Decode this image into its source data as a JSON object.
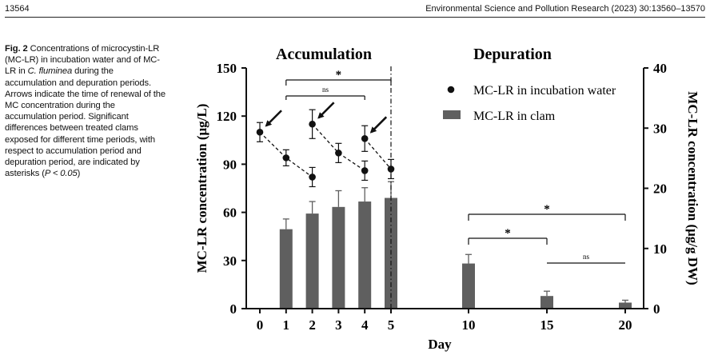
{
  "page_header": {
    "page_number": "13564",
    "journal_ref": "Environmental Science and Pollution Research (2023) 30:13560–13570"
  },
  "caption": {
    "label": "Fig. 2",
    "text_1": " Concentrations of microcystin-LR (MC-LR) in incubation water and of MC-LR in ",
    "species": "C. fluminea",
    "text_2": " during the accumulation and depuration periods. Arrows indicate the time of renewal of the MC concentration during the accumulation period. Significant differences between treated clams exposed for different time periods, with respect to accumulation period and depuration period, are indicated by asterisks (",
    "pvalue": "P < 0.05",
    "text_3": ")"
  },
  "chart_data": {
    "type": "bar",
    "period_labels": [
      "Accumulation",
      "Depuration"
    ],
    "xlabel": "Day",
    "ylabel_left": "MC-LR concentration (μg/L)",
    "ylabel_right": "MC-LR concentration (μg/g DW)",
    "ylim_left": [
      0,
      150
    ],
    "ylim_right": [
      0,
      40
    ],
    "yticks_left": [
      "0",
      "30",
      "60",
      "90",
      "120",
      "150"
    ],
    "yticks_right": [
      "0",
      "10",
      "20",
      "30",
      "40"
    ],
    "x_tick_labels": [
      "0",
      "1",
      "2",
      "3",
      "4",
      "5",
      "10",
      "15",
      "20"
    ],
    "legend_position": "top-right",
    "series": [
      {
        "name": "MC-LR in incubation water",
        "kind": "scatter-dashed",
        "axis": "left",
        "color": "#111111",
        "days": [
          0,
          1,
          2,
          2,
          3,
          4,
          4,
          5
        ],
        "values": [
          110,
          94,
          82,
          115,
          97,
          86,
          106,
          87
        ],
        "errors": [
          6,
          5,
          6,
          9,
          6,
          6,
          8,
          6
        ]
      },
      {
        "name": "MC-LR in clam",
        "kind": "bar",
        "axis": "right",
        "color": "#5f5f5f",
        "days": [
          1,
          2,
          3,
          4,
          5,
          10,
          15,
          20
        ],
        "values": [
          13.2,
          15.8,
          16.9,
          17.8,
          18.4,
          7.5,
          2.1,
          1.0
        ],
        "errors": [
          1.7,
          2.0,
          2.7,
          2.3,
          2.7,
          1.5,
          0.8,
          0.4
        ]
      }
    ],
    "arrows_at_days": [
      0,
      2,
      4
    ],
    "significance": [
      {
        "from_day": 1,
        "to_day": 5,
        "label": "*"
      },
      {
        "from_day": 1,
        "to_day": 4,
        "label": "ns"
      },
      {
        "from_day": 10,
        "to_day": 20,
        "label": "*"
      },
      {
        "from_day": 10,
        "to_day": 15,
        "label": "*"
      },
      {
        "from_day": 15,
        "to_day": 20,
        "label": "ns"
      }
    ]
  }
}
